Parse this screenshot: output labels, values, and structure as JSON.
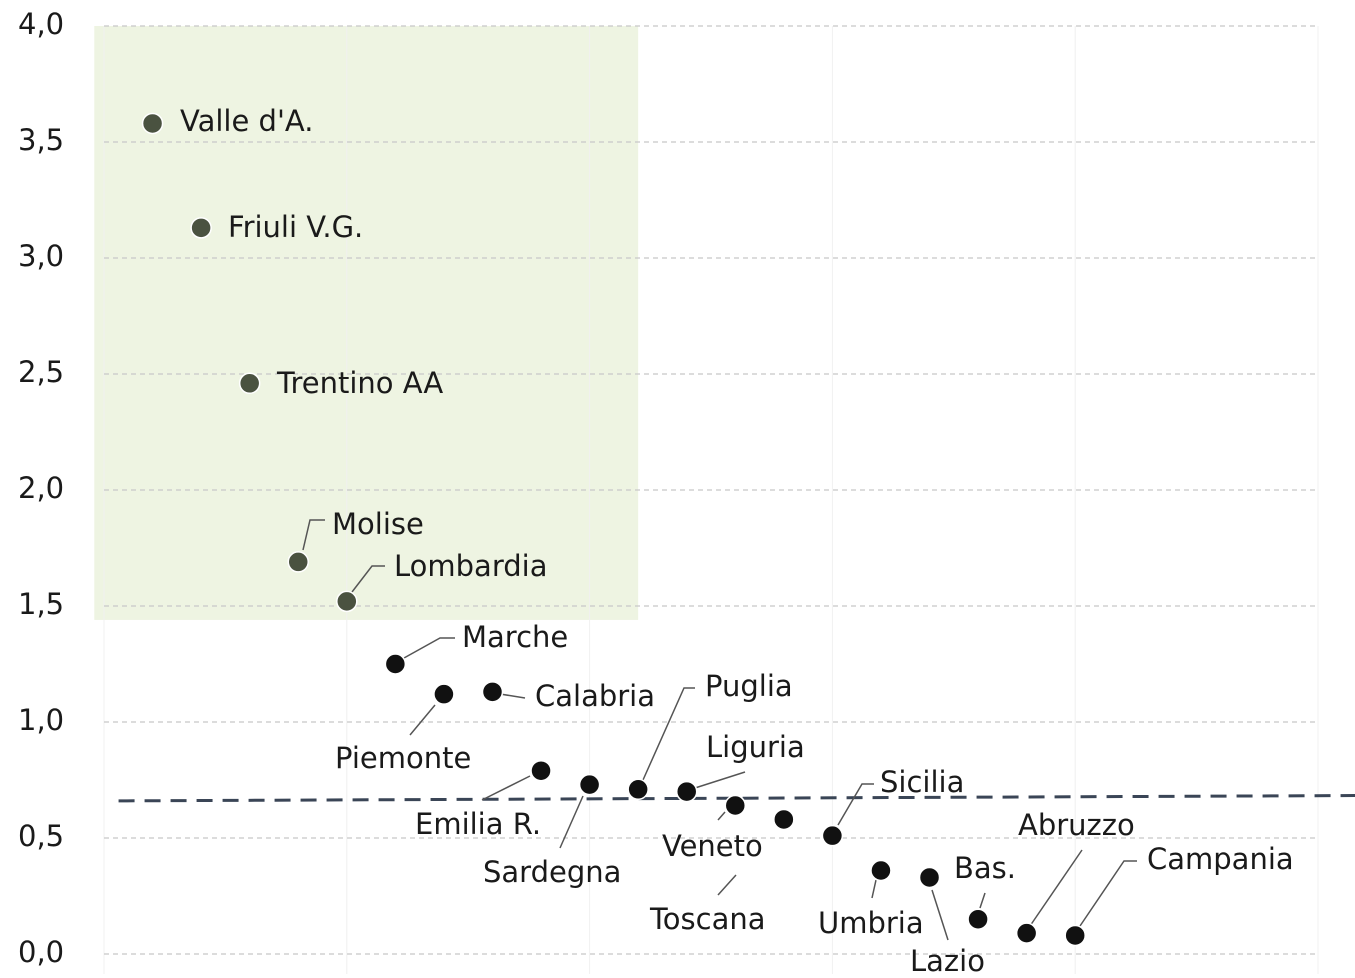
{
  "chart_data": {
    "type": "scatter",
    "categories": [
      "Valle d'A.",
      "Friuli V.G.",
      "Trentino AA",
      "Molise",
      "Lombardia",
      "Marche",
      "Piemonte",
      "Calabria",
      "Emilia R.",
      "Sardegna",
      "Puglia",
      "Liguria",
      "Veneto",
      "Toscana",
      "Sicilia",
      "Umbria",
      "Lazio",
      "Bas.",
      "Abruzzo",
      "Campania"
    ],
    "x": [
      1,
      2,
      3,
      4,
      5,
      6,
      7,
      8,
      9,
      10,
      11,
      12,
      13,
      14,
      15,
      16,
      17,
      18,
      19,
      20
    ],
    "values": [
      3.58,
      3.13,
      2.46,
      1.69,
      1.52,
      1.25,
      1.12,
      1.13,
      0.79,
      0.73,
      0.71,
      0.7,
      0.64,
      0.58,
      0.51,
      0.36,
      0.33,
      0.15,
      0.09,
      0.08
    ],
    "color": "#111111",
    "highlight": {
      "xlim": [
        -0.2,
        11
      ],
      "ylim": [
        1.44,
        4
      ],
      "color": "#eef4e2",
      "point_color": "#4a5240"
    },
    "reference_line": {
      "x": [
        0.3,
        25.8
      ],
      "y": [
        0.66,
        0.683
      ],
      "color": "#3a4556"
    },
    "xlim": [
      0,
      25
    ],
    "xticks": [
      0,
      5,
      10,
      15,
      20,
      25
    ],
    "ylim": [
      0,
      4
    ],
    "yticks": [
      {
        "value": 0,
        "label": "0,0"
      },
      {
        "value": 0.5,
        "label": "0,5"
      },
      {
        "value": 1,
        "label": "1,0"
      },
      {
        "value": 1.5,
        "label": "1,5"
      },
      {
        "value": 2,
        "label": "2,0"
      },
      {
        "value": 2.5,
        "label": "2,5"
      },
      {
        "value": 3,
        "label": "3,0"
      },
      {
        "value": 3.5,
        "label": "3,5"
      },
      {
        "value": 4,
        "label": "4,0"
      }
    ],
    "grid": true
  }
}
